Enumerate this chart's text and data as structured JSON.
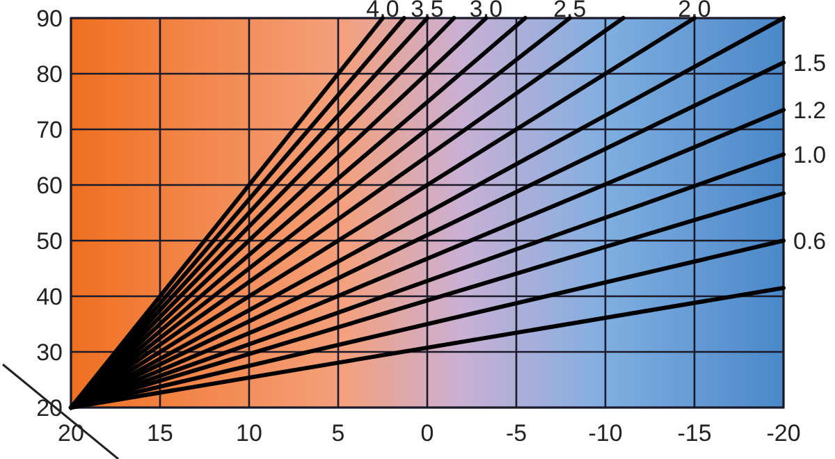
{
  "chart_data": {
    "type": "line",
    "xlim": [
      20,
      -20
    ],
    "ylim": [
      20,
      90
    ],
    "xticks": [
      20,
      15,
      10,
      5,
      0,
      -5,
      -10,
      -15,
      -20
    ],
    "yticks": [
      20,
      30,
      40,
      50,
      60,
      70,
      80,
      90
    ],
    "grid": true,
    "series": [
      {
        "color": "#000000",
        "x": [
          20,
          2.5
        ],
        "values": [
          20,
          90
        ]
      },
      {
        "color": "#000000",
        "x": [
          20,
          1.3
        ],
        "values": [
          20,
          90
        ]
      },
      {
        "color": "#000000",
        "x": [
          20,
          0
        ],
        "values": [
          20,
          90
        ]
      },
      {
        "color": "#000000",
        "x": [
          20,
          -1.5
        ],
        "values": [
          20,
          90
        ]
      },
      {
        "color": "#000000",
        "x": [
          20,
          -3.3
        ],
        "values": [
          20,
          90
        ]
      },
      {
        "color": "#000000",
        "x": [
          20,
          -5.5
        ],
        "values": [
          20,
          90
        ]
      },
      {
        "color": "#000000",
        "x": [
          20,
          -8
        ],
        "values": [
          20,
          90
        ]
      },
      {
        "color": "#000000",
        "x": [
          20,
          -11
        ],
        "values": [
          20,
          90
        ]
      },
      {
        "color": "#000000",
        "x": [
          20,
          -15
        ],
        "values": [
          20,
          90
        ]
      },
      {
        "color": "#000000",
        "x": [
          20,
          -20
        ],
        "values": [
          20,
          90
        ]
      },
      {
        "color": "#000000",
        "x": [
          20,
          -20
        ],
        "values": [
          20,
          82
        ]
      },
      {
        "color": "#000000",
        "x": [
          20,
          -20
        ],
        "values": [
          20,
          73.5
        ]
      },
      {
        "color": "#000000",
        "x": [
          20,
          -20
        ],
        "values": [
          20,
          65.5
        ]
      },
      {
        "color": "#000000",
        "x": [
          20,
          -20
        ],
        "values": [
          20,
          58.5
        ]
      },
      {
        "color": "#000000",
        "x": [
          20,
          -20
        ],
        "values": [
          20,
          50
        ]
      },
      {
        "color": "#000000",
        "x": [
          20,
          -20
        ],
        "values": [
          20,
          41.5
        ]
      }
    ],
    "annotations": [
      {
        "text": "4.0",
        "x": 2.5,
        "y": 90
      },
      {
        "text": "3.5",
        "x": 0,
        "y": 90
      },
      {
        "text": "3.0",
        "x": -3.3,
        "y": 90
      },
      {
        "text": "2.5",
        "x": -8,
        "y": 90
      },
      {
        "text": "2.0",
        "x": -15,
        "y": 90
      },
      {
        "text": "1.5",
        "x": -20,
        "y": 82
      },
      {
        "text": "1.2",
        "x": -20,
        "y": 73.5
      },
      {
        "text": "1.0",
        "x": -20,
        "y": 65.5
      },
      {
        "text": "0.6",
        "x": -20,
        "y": 50
      }
    ]
  }
}
